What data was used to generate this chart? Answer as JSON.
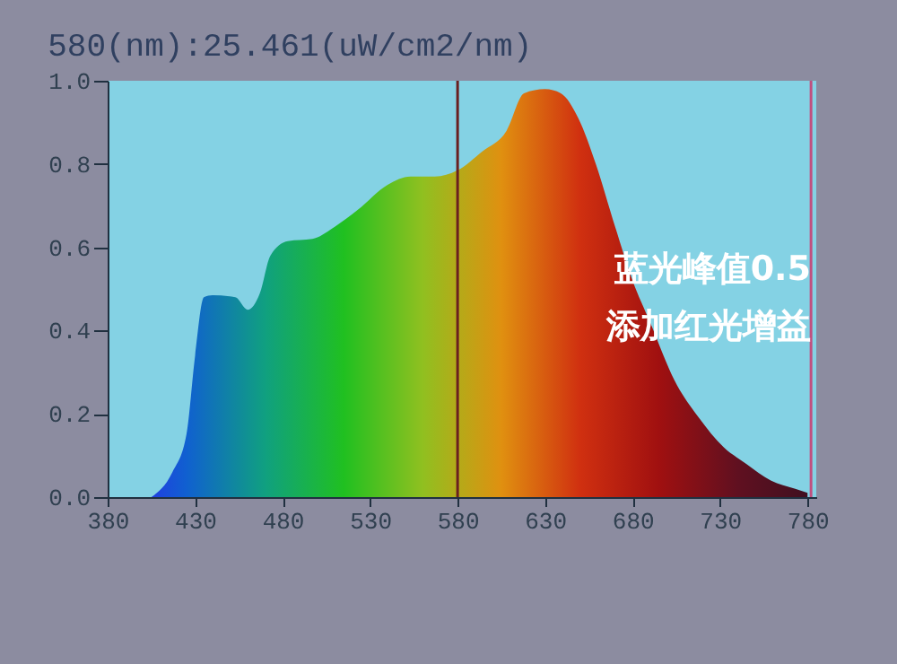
{
  "chart_data": {
    "type": "area",
    "title": "580(nm):25.461(uW/cm2/nm)",
    "annotations": [
      "蓝光峰值0.5",
      "添加红光增益"
    ],
    "x": [
      405,
      417,
      425,
      430,
      435,
      440,
      453,
      460,
      467,
      473,
      483,
      497,
      510,
      523,
      540,
      553,
      567,
      580,
      594,
      608,
      618,
      630,
      639,
      649,
      659,
      670,
      680,
      690,
      704,
      718,
      732,
      745,
      759,
      773,
      780
    ],
    "series": [
      {
        "values": [
          0,
          0.06,
          0.15,
          0.34,
          0.48,
          0.485,
          0.48,
          0.45,
          0.49,
          0.58,
          0.615,
          0.62,
          0.65,
          0.69,
          0.75,
          0.77,
          0.77,
          0.785,
          0.83,
          0.88,
          0.97,
          0.98,
          0.97,
          0.91,
          0.8,
          0.65,
          0.52,
          0.42,
          0.28,
          0.19,
          0.12,
          0.08,
          0.04,
          0.02,
          0.01
        ]
      }
    ],
    "colors": [
      "#2040e0",
      "#1060d0",
      "#10a080",
      "#20c020",
      "#90c020",
      "#e09010",
      "#d03010",
      "#a01010",
      "#601020",
      "#401020"
    ],
    "xlim": [
      380,
      785
    ],
    "xticks": [
      380,
      430,
      480,
      530,
      580,
      630,
      680,
      730,
      780
    ],
    "ylim": [
      0,
      1
    ],
    "yticks": [
      {
        "value": 0,
        "label": "0.0"
      },
      0.2,
      0.4,
      0.6,
      0.8,
      {
        "value": 1,
        "label": "1.0"
      }
    ],
    "ref_lines": [
      {
        "axis": "x",
        "value": 580,
        "color": "#6a2020"
      },
      {
        "axis": "x",
        "value": 782,
        "color": "#c05080"
      }
    ],
    "grid": false
  }
}
